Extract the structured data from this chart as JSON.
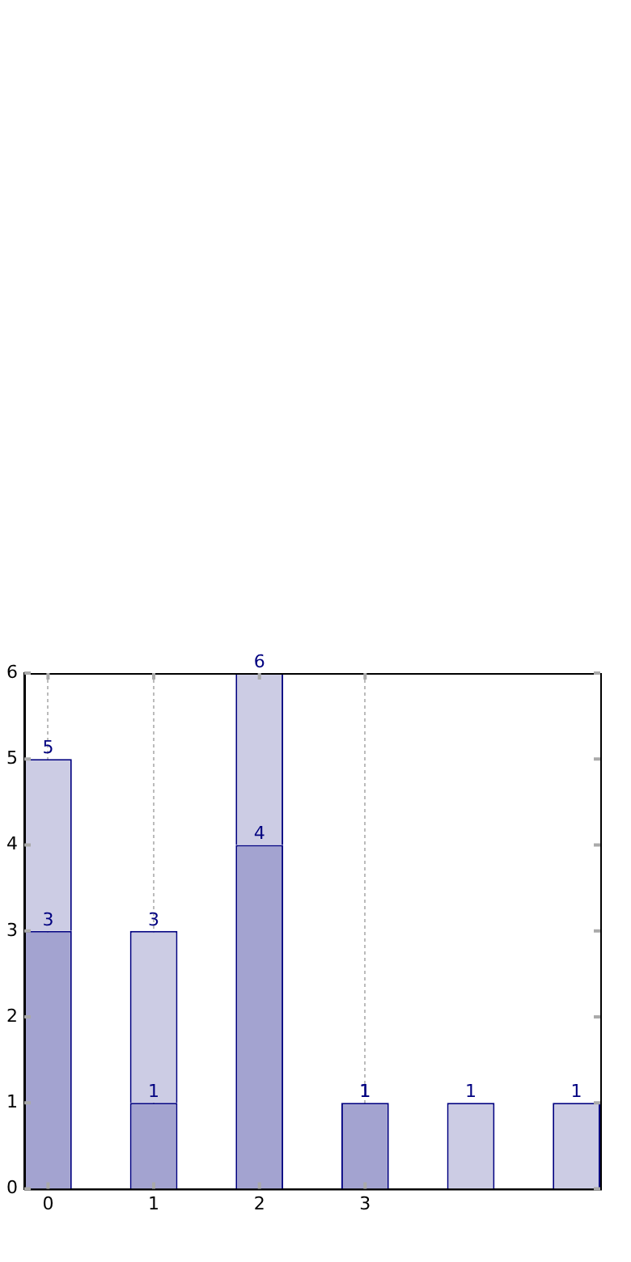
{
  "chart_data": {
    "type": "bar",
    "x": [
      0,
      1,
      2,
      3,
      4,
      5
    ],
    "stacked": true,
    "series": [
      {
        "color": "#a3a3d0",
        "values": [
          3,
          1,
          4,
          1,
          null,
          null
        ],
        "value_labels": [
          "3",
          "1",
          "4",
          "1",
          null,
          null
        ]
      },
      {
        "color": "#ccccE4",
        "values": [
          2,
          2,
          2,
          0,
          1,
          1
        ]
      }
    ],
    "totals": [
      "5",
      "3",
      "6",
      "1",
      "1",
      "1"
    ],
    "xlim": [
      -0.225,
      5.225
    ],
    "xticks": [
      0,
      1,
      2,
      3
    ],
    "ylim": [
      0,
      6
    ],
    "yticks": [
      0,
      1,
      2,
      3,
      4,
      5,
      6
    ],
    "grid": "x",
    "legend": false
  }
}
